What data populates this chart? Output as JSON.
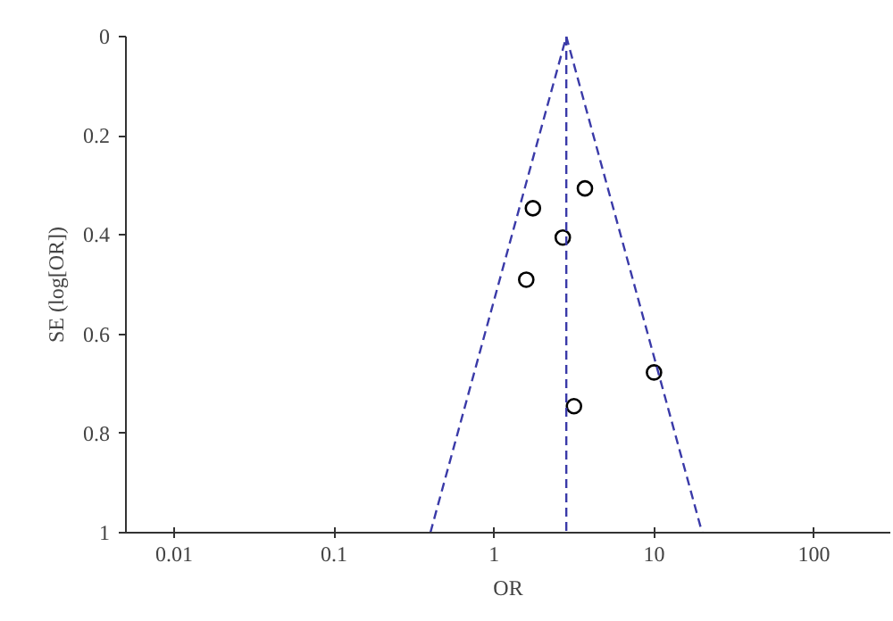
{
  "chart_data": {
    "type": "scatter",
    "xlabel": "OR",
    "ylabel": "SE (log[OR])",
    "log": "x",
    "xlim": [
      0.005,
      300
    ],
    "ylim": [
      1,
      0
    ],
    "xticks": [
      0.01,
      0.1,
      1,
      10,
      100
    ],
    "yticks": [
      0,
      0.2,
      0.4,
      0.6,
      0.8,
      1
    ],
    "grid": false,
    "marker": "circle",
    "series": [
      {
        "color": "#000000",
        "x": [
          3.7,
          1.75,
          2.69,
          1.59,
          10,
          3.16
        ],
        "values": [
          0.306,
          0.346,
          0.405,
          0.49,
          0.677,
          0.745
        ]
      },
      {
        "type": "line",
        "color": "#3a3aa8",
        "line_style": "dashed",
        "marker": "none",
        "x": [
          0.4,
          2.83,
          20
        ],
        "values": [
          1,
          0,
          1
        ]
      }
    ],
    "ref_lines": [
      {
        "axis": "x",
        "value": 2.83,
        "color": "#3a3aa8",
        "line_style": "dashed"
      }
    ]
  }
}
